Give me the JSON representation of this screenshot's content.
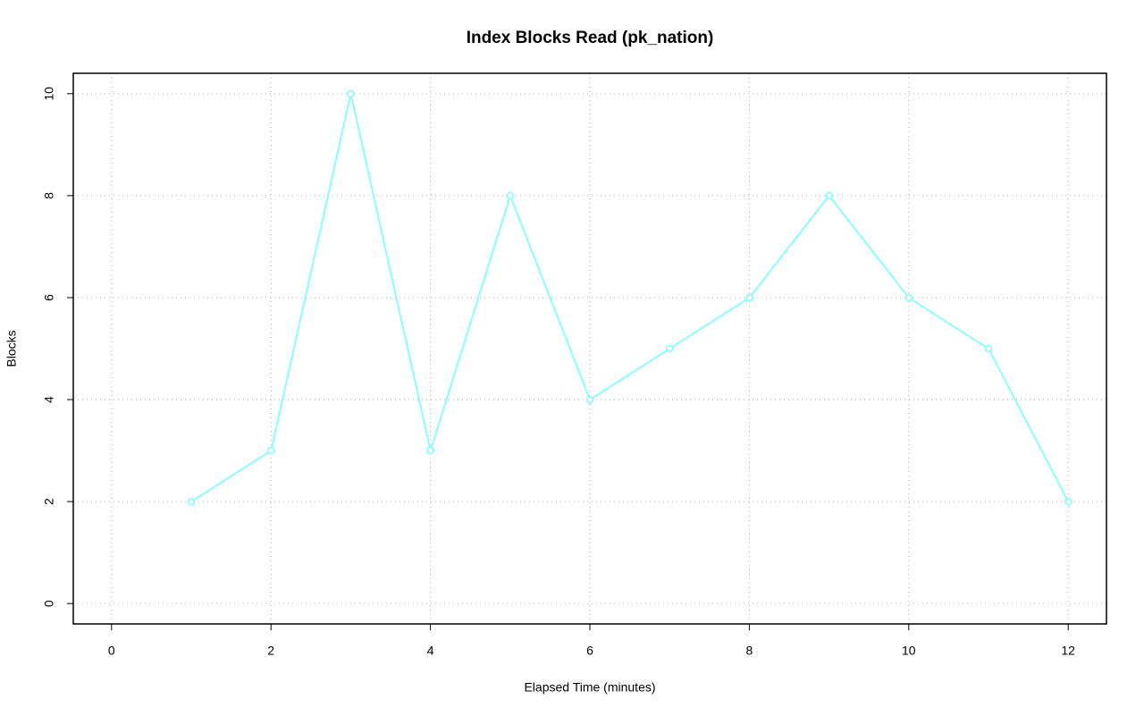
{
  "chart_data": {
    "type": "line",
    "title": "Index Blocks Read (pk_nation)",
    "x_label": "Elapsed Time (minutes)",
    "y_label": "Blocks",
    "x": [
      1,
      2,
      3,
      4,
      5,
      6,
      7,
      8,
      9,
      10,
      11,
      12
    ],
    "series": [
      {
        "color": "#7fffff",
        "values": [
          2,
          3,
          10,
          3,
          8,
          4,
          5,
          6,
          8,
          6,
          5,
          2
        ]
      }
    ],
    "xlim": [
      -0.48,
      12.48
    ],
    "ylim": [
      -0.4,
      10.4
    ],
    "xticks": [
      0,
      2,
      4,
      6,
      8,
      10,
      12
    ],
    "yticks": [
      0,
      2,
      4,
      6,
      8,
      10
    ],
    "grid": true
  }
}
